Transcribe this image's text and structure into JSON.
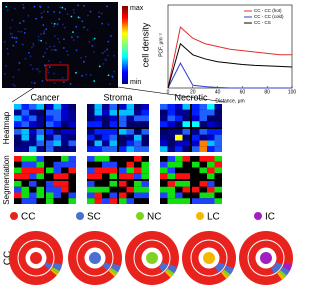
{
  "colorbar": {
    "label": "cell density",
    "max": "max",
    "min": "min"
  },
  "chart_data": {
    "type": "line",
    "ylabel": "PCF, μm⁻²",
    "xlabel": "Distance, μm",
    "x": [
      0,
      10,
      20,
      30,
      40,
      50,
      60,
      70,
      80,
      90,
      100
    ],
    "xlim": [
      0,
      100
    ],
    "xticks": [
      0,
      20,
      40,
      60,
      80,
      100
    ],
    "ylim": [
      0,
      3
    ],
    "legend": "upper right",
    "series": [
      {
        "name": "CC - CC (hot)",
        "color": "#e03030",
        "values": [
          0,
          2.2,
          1.8,
          1.6,
          1.5,
          1.4,
          1.35,
          1.3,
          1.25,
          1.2,
          1.2
        ]
      },
      {
        "name": "CC - CC (cold)",
        "color": "#3040d0",
        "values": [
          0,
          0.9,
          0.1,
          0.05,
          0.02,
          0,
          0,
          0,
          0,
          0,
          0
        ]
      },
      {
        "name": "CC - CS",
        "color": "#000000",
        "values": [
          0,
          1.6,
          1.2,
          1.05,
          0.95,
          0.9,
          0.85,
          0.82,
          0.8,
          0.78,
          0.76
        ]
      }
    ]
  },
  "panels": {
    "columns": [
      "Cancer",
      "Stroma",
      "Necrotic"
    ],
    "rows": [
      "Heatmap",
      "Segmentation"
    ]
  },
  "donuts": {
    "row_label": "CC",
    "legend": [
      {
        "label": "CC",
        "color": "#e8231e"
      },
      {
        "label": "SC",
        "color": "#4a6fd0"
      },
      {
        "label": "NC",
        "color": "#7ed321"
      },
      {
        "label": "LC",
        "color": "#f5b800"
      },
      {
        "label": "IC",
        "color": "#a020c0"
      }
    ]
  }
}
